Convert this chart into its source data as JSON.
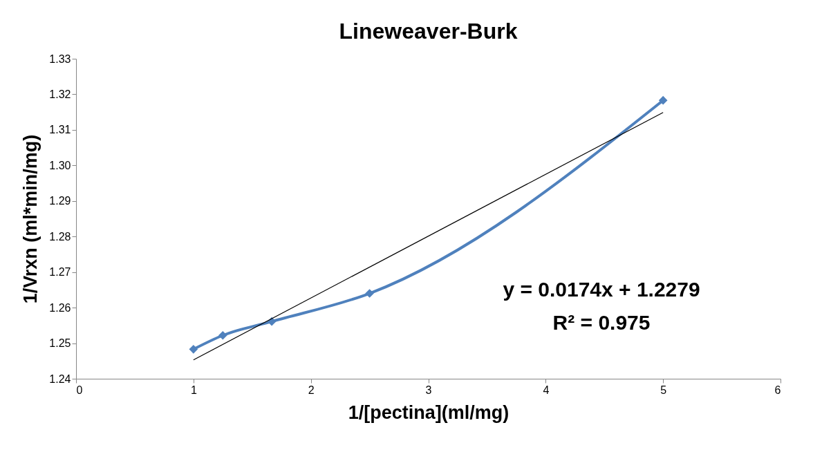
{
  "chart_data": {
    "type": "line",
    "title": "Lineweaver-Burk",
    "xlabel": "1/[pectina](ml/mg)",
    "ylabel": "1/Vrxn (ml*min/mg)",
    "x": [
      1,
      1.25,
      1.667,
      2.5,
      5
    ],
    "series": [
      {
        "color": "#4f81bd",
        "values": [
          1.2483,
          1.2522,
          1.2561,
          1.264,
          1.3183
        ],
        "marker": "diamond"
      },
      {
        "type": "line",
        "color": "#000000",
        "x": [
          1,
          5
        ],
        "values": [
          1.2453,
          1.3149
        ],
        "marker": "none"
      }
    ],
    "xlim": [
      0,
      6
    ],
    "xticks": [
      0,
      1,
      2,
      3,
      4,
      5,
      6
    ],
    "ylim": [
      1.24,
      1.33
    ],
    "yticks": [
      1.24,
      1.25,
      1.26,
      1.27,
      1.28,
      1.29,
      {
        "value": 1.3,
        "label": "1.30"
      },
      1.31,
      1.32,
      1.33
    ],
    "annotations": [
      "y = 0.0174x + 1.2279",
      "R² = 0.975"
    ],
    "grid": false
  }
}
